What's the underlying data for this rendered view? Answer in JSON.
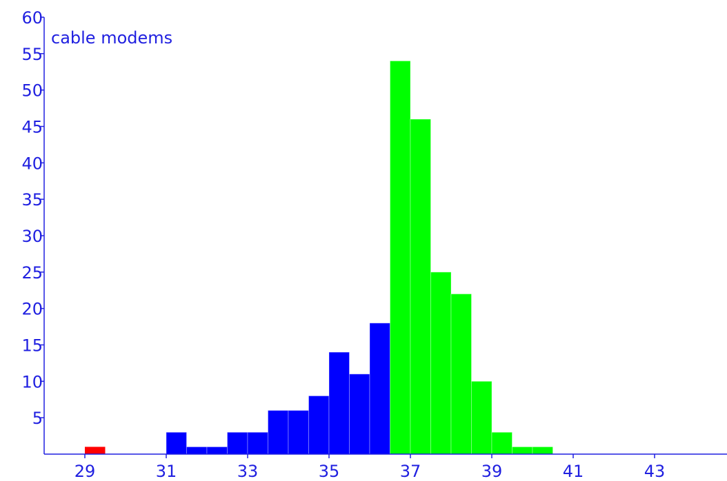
{
  "chart_data": {
    "type": "bar",
    "title": "",
    "ylabel": "cable modems",
    "xlabel": "",
    "xlim": [
      28,
      45
    ],
    "ylim": [
      0,
      60
    ],
    "x_ticks": [
      "29",
      "31",
      "33",
      "35",
      "37",
      "39",
      "41",
      "43"
    ],
    "y_ticks": [
      "5",
      "10",
      "15",
      "20",
      "25",
      "30",
      "35",
      "40",
      "45",
      "50",
      "55",
      "60"
    ],
    "bin_width": 0.5,
    "grid": false,
    "legend": "none",
    "colors": {
      "axis": "#1f1fe0",
      "red": "#ff0000",
      "blue": "#0000ff",
      "green": "#00ff00"
    },
    "bins": [
      {
        "x": 29.0,
        "value": 1,
        "color": "red"
      },
      {
        "x": 31.0,
        "value": 3,
        "color": "blue"
      },
      {
        "x": 31.5,
        "value": 1,
        "color": "blue"
      },
      {
        "x": 32.0,
        "value": 1,
        "color": "blue"
      },
      {
        "x": 32.5,
        "value": 3,
        "color": "blue"
      },
      {
        "x": 33.0,
        "value": 3,
        "color": "blue"
      },
      {
        "x": 33.5,
        "value": 6,
        "color": "blue"
      },
      {
        "x": 34.0,
        "value": 6,
        "color": "blue"
      },
      {
        "x": 34.5,
        "value": 8,
        "color": "blue"
      },
      {
        "x": 35.0,
        "value": 14,
        "color": "blue"
      },
      {
        "x": 35.5,
        "value": 11,
        "color": "blue"
      },
      {
        "x": 36.0,
        "value": 18,
        "color": "blue"
      },
      {
        "x": 36.5,
        "value": 54,
        "color": "green"
      },
      {
        "x": 37.0,
        "value": 46,
        "color": "green"
      },
      {
        "x": 37.5,
        "value": 25,
        "color": "green"
      },
      {
        "x": 38.0,
        "value": 22,
        "color": "green"
      },
      {
        "x": 38.5,
        "value": 10,
        "color": "green"
      },
      {
        "x": 39.0,
        "value": 3,
        "color": "green"
      },
      {
        "x": 39.5,
        "value": 1,
        "color": "green"
      },
      {
        "x": 40.0,
        "value": 1,
        "color": "green"
      }
    ]
  }
}
